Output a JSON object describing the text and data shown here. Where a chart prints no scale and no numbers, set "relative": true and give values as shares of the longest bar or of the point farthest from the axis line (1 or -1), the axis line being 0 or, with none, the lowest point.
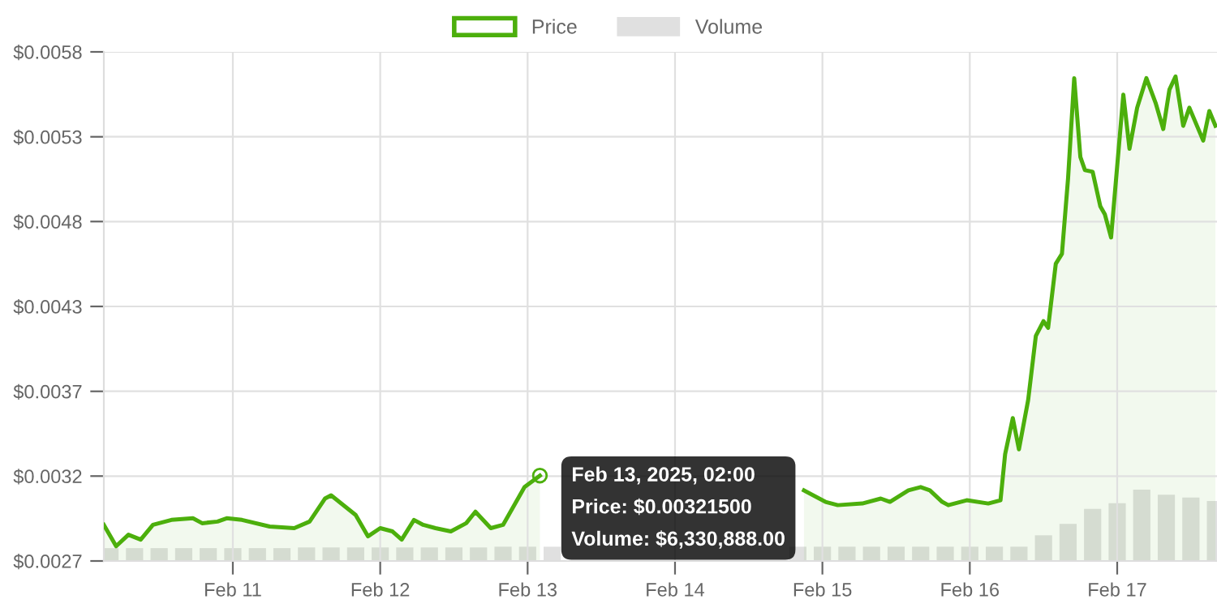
{
  "chart_data": [
    {
      "type": "area",
      "legend": "top",
      "grid": true,
      "xlim": [
        "2025-02-10T03:00",
        "2025-02-17T16:15"
      ],
      "xticks": [
        {
          "value": "2025-02-11",
          "label": "Feb 11"
        },
        {
          "value": "2025-02-12",
          "label": "Feb 12"
        },
        {
          "value": "2025-02-13",
          "label": "Feb 13"
        },
        {
          "value": "2025-02-14",
          "label": "Feb 14"
        },
        {
          "value": "2025-02-15",
          "label": "Feb 15"
        },
        {
          "value": "2025-02-16",
          "label": "Feb 16"
        },
        {
          "value": "2025-02-17",
          "label": "Feb 17"
        }
      ],
      "ylim": [
        0.0027,
        0.0058
      ],
      "yticks": [
        {
          "value": 0.0027,
          "label": "$0.0027"
        },
        {
          "value": 0.003217,
          "label": "$0.0032"
        },
        {
          "value": 0.003733,
          "label": "$0.0037"
        },
        {
          "value": 0.00425,
          "label": "$0.0043"
        },
        {
          "value": 0.004767,
          "label": "$0.0048"
        },
        {
          "value": 0.005283,
          "label": "$0.0053"
        },
        {
          "value": 0.0058,
          "label": "$0.0058"
        }
      ],
      "series": [
        {
          "name": "Price",
          "color": "#4caf0c",
          "x": [
            "2025-02-10T03:00",
            "2025-02-10T05:00",
            "2025-02-10T07:00",
            "2025-02-10T09:00",
            "2025-02-10T11:00",
            "2025-02-10T14:00",
            "2025-02-10T17:30",
            "2025-02-10T19:00",
            "2025-02-10T21:30",
            "2025-02-10T23:00",
            "2025-02-11T01:30",
            "2025-02-11T06:00",
            "2025-02-11T10:00",
            "2025-02-11T12:30",
            "2025-02-11T15:00",
            "2025-02-11T16:00",
            "2025-02-11T20:00",
            "2025-02-11T22:00",
            "2025-02-12T00:00",
            "2025-02-12T02:00",
            "2025-02-12T03:30",
            "2025-02-12T05:30",
            "2025-02-12T07:00",
            "2025-02-12T09:00",
            "2025-02-12T11:30",
            "2025-02-12T14:00",
            "2025-02-12T15:30",
            "2025-02-12T18:00",
            "2025-02-12T20:00",
            "2025-02-12T23:30",
            "2025-02-13T02:00",
            "2025-02-13T07:30",
            "2025-02-13T13:30",
            "2025-02-13T17:30",
            "2025-02-14T00:00",
            "2025-02-14T04:00",
            "2025-02-14T07:00",
            "2025-02-14T11:30",
            "2025-02-14T17:30",
            "2025-02-14T21:00",
            "2025-02-15T00:30",
            "2025-02-15T02:30",
            "2025-02-15T06:30",
            "2025-02-15T09:30",
            "2025-02-15T11:00",
            "2025-02-15T14:00",
            "2025-02-15T16:00",
            "2025-02-15T17:30",
            "2025-02-15T19:30",
            "2025-02-15T20:30",
            "2025-02-15T23:30",
            "2025-02-16T03:00",
            "2025-02-16T05:00",
            "2025-02-16T05:45",
            "2025-02-16T07:00",
            "2025-02-16T08:00",
            "2025-02-16T09:30",
            "2025-02-16T10:45",
            "2025-02-16T12:00",
            "2025-02-16T12:45",
            "2025-02-16T14:00",
            "2025-02-16T15:00",
            "2025-02-16T16:00",
            "2025-02-16T17:00",
            "2025-02-16T18:00",
            "2025-02-16T18:45",
            "2025-02-16T20:00",
            "2025-02-16T21:15",
            "2025-02-16T22:00",
            "2025-02-16T23:00",
            "2025-02-17T01:00",
            "2025-02-17T02:00",
            "2025-02-17T03:15",
            "2025-02-17T04:45",
            "2025-02-17T06:15",
            "2025-02-17T07:30",
            "2025-02-17T08:30",
            "2025-02-17T09:30",
            "2025-02-17T10:45",
            "2025-02-17T11:45",
            "2025-02-17T14:00",
            "2025-02-17T15:00",
            "2025-02-17T16:00"
          ],
          "values": [
            0.00292,
            0.00279,
            0.00286,
            0.00283,
            0.00292,
            0.00295,
            0.00296,
            0.00293,
            0.00294,
            0.00296,
            0.00295,
            0.00291,
            0.0029,
            0.00294,
            0.00308,
            0.0031,
            0.00298,
            0.00285,
            0.0029,
            0.00288,
            0.00283,
            0.00295,
            0.00292,
            0.0029,
            0.00288,
            0.00293,
            0.003,
            0.0029,
            0.00292,
            0.00315,
            0.00322,
            null,
            null,
            null,
            null,
            null,
            null,
            null,
            null,
            0.00313,
            0.00306,
            0.00304,
            0.00305,
            0.00308,
            0.00306,
            0.00313,
            0.00315,
            0.00313,
            0.00306,
            0.00304,
            0.00307,
            0.00305,
            0.00307,
            0.00335,
            0.00357,
            0.00338,
            0.00368,
            0.00407,
            0.00416,
            0.00412,
            0.00451,
            0.00457,
            0.00503,
            0.00564,
            0.00516,
            0.00508,
            0.00507,
            0.00486,
            0.00481,
            0.00467,
            0.00554,
            0.00521,
            0.00546,
            0.00564,
            0.00549,
            0.00533,
            0.00557,
            0.00565,
            0.00535,
            0.00546,
            0.00526,
            0.00544,
            0.00535
          ]
        }
      ],
      "annotations": [
        {
          "text": "Feb 13, 2025, 02:00\nPrice: $0.00321500\nVolume: $6,330,888.00",
          "x": "2025-02-13T02:00",
          "y": 0.00322
        }
      ]
    },
    {
      "type": "bar",
      "relative": true,
      "legend": "top",
      "xlim": [
        "2025-02-10T03:00",
        "2025-02-17T16:15"
      ],
      "series": [
        {
          "name": "Volume",
          "color": "#e0e0e0",
          "x": [
            "2025-02-10T04:00",
            "2025-02-10T08:00",
            "2025-02-10T12:00",
            "2025-02-10T16:00",
            "2025-02-10T20:00",
            "2025-02-11T00:00",
            "2025-02-11T04:00",
            "2025-02-11T08:00",
            "2025-02-11T12:00",
            "2025-02-11T16:00",
            "2025-02-11T20:00",
            "2025-02-12T00:00",
            "2025-02-12T04:00",
            "2025-02-12T08:00",
            "2025-02-12T12:00",
            "2025-02-12T16:00",
            "2025-02-12T20:00",
            "2025-02-13T00:00",
            "2025-02-13T04:00",
            "2025-02-13T08:00",
            "2025-02-13T12:00",
            "2025-02-13T16:00",
            "2025-02-13T20:00",
            "2025-02-14T00:00",
            "2025-02-14T04:00",
            "2025-02-14T08:00",
            "2025-02-14T12:00",
            "2025-02-14T16:00",
            "2025-02-14T20:00",
            "2025-02-15T00:00",
            "2025-02-15T04:00",
            "2025-02-15T08:00",
            "2025-02-15T12:00",
            "2025-02-15T16:00",
            "2025-02-15T20:00",
            "2025-02-16T00:00",
            "2025-02-16T04:00",
            "2025-02-16T08:00",
            "2025-02-16T12:00",
            "2025-02-16T16:00",
            "2025-02-16T20:00",
            "2025-02-17T00:00",
            "2025-02-17T04:00",
            "2025-02-17T08:00",
            "2025-02-17T12:00",
            "2025-02-17T16:00"
          ],
          "values": [
            0.18,
            0.18,
            0.18,
            0.18,
            0.18,
            0.18,
            0.18,
            0.18,
            0.19,
            0.19,
            0.19,
            0.19,
            0.19,
            0.19,
            0.19,
            0.19,
            0.2,
            0.2,
            0.2,
            null,
            null,
            null,
            null,
            null,
            null,
            null,
            null,
            null,
            0.2,
            0.2,
            0.2,
            0.2,
            0.2,
            0.2,
            0.2,
            0.2,
            0.2,
            0.2,
            0.36,
            0.52,
            0.73,
            0.81,
            1,
            0.93,
            0.89,
            0.84
          ]
        }
      ]
    }
  ]
}
